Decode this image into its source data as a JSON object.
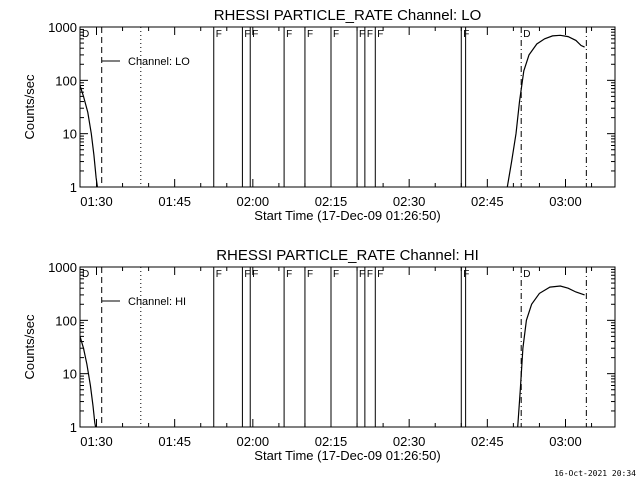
{
  "chart_data": [
    {
      "type": "line",
      "title": "RHESSI PARTICLE_RATE Channel: LO",
      "xlabel": "Start Time (17-Dec-09 01:26:50)",
      "ylabel": "Counts/sec",
      "yscale": "log",
      "ylim": [
        1,
        1000
      ],
      "xlim": [
        "01:26:50",
        "03:09:30"
      ],
      "x_ticks": [
        "01:30",
        "01:45",
        "02:00",
        "02:15",
        "02:30",
        "02:45",
        "03:00"
      ],
      "y_ticks": [
        "1",
        "10",
        "100",
        "1000"
      ],
      "legend": "Channel: LO",
      "series": [
        {
          "name": "Channel: LO",
          "segments": [
            [
              [
                "01:26:50",
                80
              ],
              [
                "01:27:30",
                50
              ],
              [
                "01:28:20",
                25
              ],
              [
                "01:29:00",
                10
              ],
              [
                "01:29:30",
                4
              ],
              [
                "01:29:55",
                1.5
              ],
              [
                "01:30:10",
                1
              ]
            ],
            [
              [
                "02:48:50",
                1
              ],
              [
                "02:49:40",
                3
              ],
              [
                "02:50:30",
                10
              ],
              [
                "02:51:10",
                40
              ],
              [
                "02:52:00",
                150
              ],
              [
                "02:53:00",
                300
              ],
              [
                "02:54:30",
                480
              ],
              [
                "02:56:00",
                600
              ],
              [
                "02:57:30",
                680
              ],
              [
                "02:59:00",
                700
              ],
              [
                "03:00:30",
                660
              ],
              [
                "03:02:00",
                560
              ],
              [
                "03:03:00",
                450
              ],
              [
                "03:03:40",
                420
              ]
            ]
          ]
        }
      ],
      "markers": [
        {
          "time": "01:31:00",
          "style": "dashed"
        },
        {
          "time": "01:38:30",
          "style": "dotted"
        },
        {
          "time": "01:52:30",
          "style": "solid",
          "label": "F"
        },
        {
          "time": "01:58:00",
          "style": "solid",
          "label": "F"
        },
        {
          "time": "01:59:30",
          "style": "solid",
          "label": "F"
        },
        {
          "time": "02:06:00",
          "style": "solid",
          "label": "F"
        },
        {
          "time": "02:10:00",
          "style": "solid",
          "label": "F"
        },
        {
          "time": "02:15:00",
          "style": "solid",
          "label": "F"
        },
        {
          "time": "02:20:00",
          "style": "solid",
          "label": "F"
        },
        {
          "time": "02:21:30",
          "style": "solid",
          "label": "F"
        },
        {
          "time": "02:23:30",
          "style": "solid",
          "label": "F"
        },
        {
          "time": "02:40:00",
          "style": "solid",
          "label": "F"
        },
        {
          "time": "02:40:50",
          "style": "solid"
        },
        {
          "time": "02:51:30",
          "style": "dashdot",
          "label": "D"
        },
        {
          "time": "03:04:00",
          "style": "dashdot"
        }
      ],
      "corner_label": "D"
    },
    {
      "type": "line",
      "title": "RHESSI PARTICLE_RATE Channel: HI",
      "xlabel": "Start Time (17-Dec-09 01:26:50)",
      "ylabel": "Counts/sec",
      "yscale": "log",
      "ylim": [
        1,
        1000
      ],
      "xlim": [
        "01:26:50",
        "03:09:30"
      ],
      "x_ticks": [
        "01:30",
        "01:45",
        "02:00",
        "02:15",
        "02:30",
        "02:45",
        "03:00"
      ],
      "y_ticks": [
        "1",
        "10",
        "100",
        "1000"
      ],
      "legend": "Channel: HI",
      "series": [
        {
          "name": "Channel: HI",
          "segments": [
            [
              [
                "01:26:50",
                50
              ],
              [
                "01:27:30",
                30
              ],
              [
                "01:28:10",
                15
              ],
              [
                "01:28:50",
                6
              ],
              [
                "01:29:20",
                2.5
              ],
              [
                "01:29:40",
                1.2
              ],
              [
                "01:29:50",
                1
              ]
            ],
            [
              [
                "02:50:50",
                1
              ],
              [
                "02:51:20",
                5
              ],
              [
                "02:51:50",
                30
              ],
              [
                "02:52:30",
                100
              ],
              [
                "02:53:30",
                200
              ],
              [
                "02:55:00",
                320
              ],
              [
                "02:57:00",
                420
              ],
              [
                "02:59:00",
                440
              ],
              [
                "03:00:30",
                400
              ],
              [
                "03:02:00",
                340
              ],
              [
                "03:03:40",
                300
              ]
            ]
          ]
        }
      ],
      "markers": [
        {
          "time": "01:31:00",
          "style": "dashed"
        },
        {
          "time": "01:38:30",
          "style": "dotted"
        },
        {
          "time": "01:52:30",
          "style": "solid",
          "label": "F"
        },
        {
          "time": "01:58:00",
          "style": "solid",
          "label": "F"
        },
        {
          "time": "01:59:30",
          "style": "solid",
          "label": "F"
        },
        {
          "time": "02:06:00",
          "style": "solid",
          "label": "F"
        },
        {
          "time": "02:10:00",
          "style": "solid",
          "label": "F"
        },
        {
          "time": "02:15:00",
          "style": "solid",
          "label": "F"
        },
        {
          "time": "02:20:00",
          "style": "solid",
          "label": "F"
        },
        {
          "time": "02:21:30",
          "style": "solid",
          "label": "F"
        },
        {
          "time": "02:23:30",
          "style": "solid",
          "label": "F"
        },
        {
          "time": "02:40:00",
          "style": "solid",
          "label": "F"
        },
        {
          "time": "02:40:50",
          "style": "solid"
        },
        {
          "time": "02:51:30",
          "style": "dashdot",
          "label": "D"
        },
        {
          "time": "03:04:00",
          "style": "dashdot"
        }
      ],
      "corner_label": "D"
    }
  ],
  "footer": {
    "timestamp": "16-Oct-2021 20:34"
  }
}
